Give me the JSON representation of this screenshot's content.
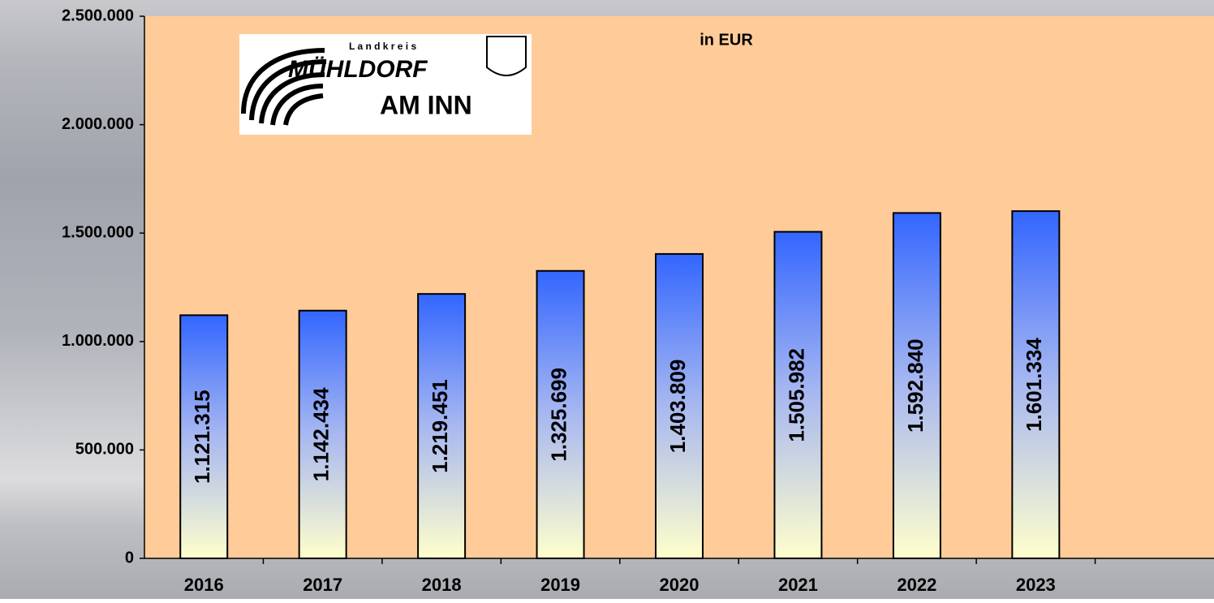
{
  "chart_data": {
    "type": "bar",
    "title": "in EUR",
    "logo": {
      "top": "L a n d k r e i s",
      "name": "MÜHLDORF",
      "place": "AM INN"
    },
    "categories": [
      "2016",
      "2017",
      "2018",
      "2019",
      "2020",
      "2021",
      "2022",
      "2023",
      null
    ],
    "values": [
      1121315,
      1142434,
      1219451,
      1325699,
      1403809,
      1505982,
      1592840,
      1601334,
      null
    ],
    "value_labels": [
      "1.121.315",
      "1.142.434",
      "1.219.451",
      "1.325.699",
      "1.403.809",
      "1.505.982",
      "1.592.840",
      "1.601.334",
      null
    ],
    "color": "#3366ff",
    "ylim": [
      0,
      2500000
    ],
    "yticks": [
      0,
      {
        "value": 500000,
        "label": "500.000"
      },
      {
        "value": 1000000,
        "label": "1.000.000"
      },
      {
        "value": 1500000,
        "label": "1.500.000"
      },
      {
        "value": 2000000,
        "label": "2.000.000"
      },
      {
        "value": 2500000,
        "label": "2.500.000"
      }
    ],
    "grid": false
  }
}
